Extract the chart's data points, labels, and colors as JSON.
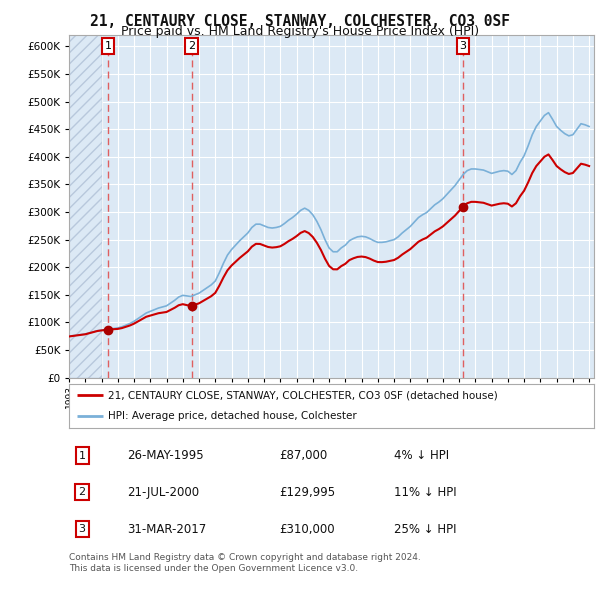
{
  "title": "21, CENTAURY CLOSE, STANWAY, COLCHESTER, CO3 0SF",
  "subtitle": "Price paid vs. HM Land Registry's House Price Index (HPI)",
  "title_fontsize": 10.5,
  "subtitle_fontsize": 9,
  "background_color": "#ffffff",
  "plot_bg_color": "#dce9f5",
  "grid_color": "#ffffff",
  "hatch_color": "#b8c8dc",
  "sale_points": [
    {
      "date_num": 1995.39,
      "price": 87000,
      "label": "1"
    },
    {
      "date_num": 2000.55,
      "price": 129995,
      "label": "2"
    },
    {
      "date_num": 2017.25,
      "price": 310000,
      "label": "3"
    }
  ],
  "vline_color": "#e05050",
  "sale_dot_color": "#aa0000",
  "price_line_color": "#cc0000",
  "hpi_line_color": "#7ab0d8",
  "ylim": [
    0,
    620000
  ],
  "yticks": [
    0,
    50000,
    100000,
    150000,
    200000,
    250000,
    300000,
    350000,
    400000,
    450000,
    500000,
    550000,
    600000
  ],
  "footer_text": "Contains HM Land Registry data © Crown copyright and database right 2024.\nThis data is licensed under the Open Government Licence v3.0.",
  "legend_entries": [
    {
      "label": "21, CENTAURY CLOSE, STANWAY, COLCHESTER, CO3 0SF (detached house)",
      "color": "#cc0000"
    },
    {
      "label": "HPI: Average price, detached house, Colchester",
      "color": "#7ab0d8"
    }
  ],
  "table_rows": [
    {
      "num": "1",
      "date": "26-MAY-1995",
      "price": "£87,000",
      "hpi": "4% ↓ HPI"
    },
    {
      "num": "2",
      "date": "21-JUL-2000",
      "price": "£129,995",
      "hpi": "11% ↓ HPI"
    },
    {
      "num": "3",
      "date": "31-MAR-2017",
      "price": "£310,000",
      "hpi": "25% ↓ HPI"
    }
  ]
}
